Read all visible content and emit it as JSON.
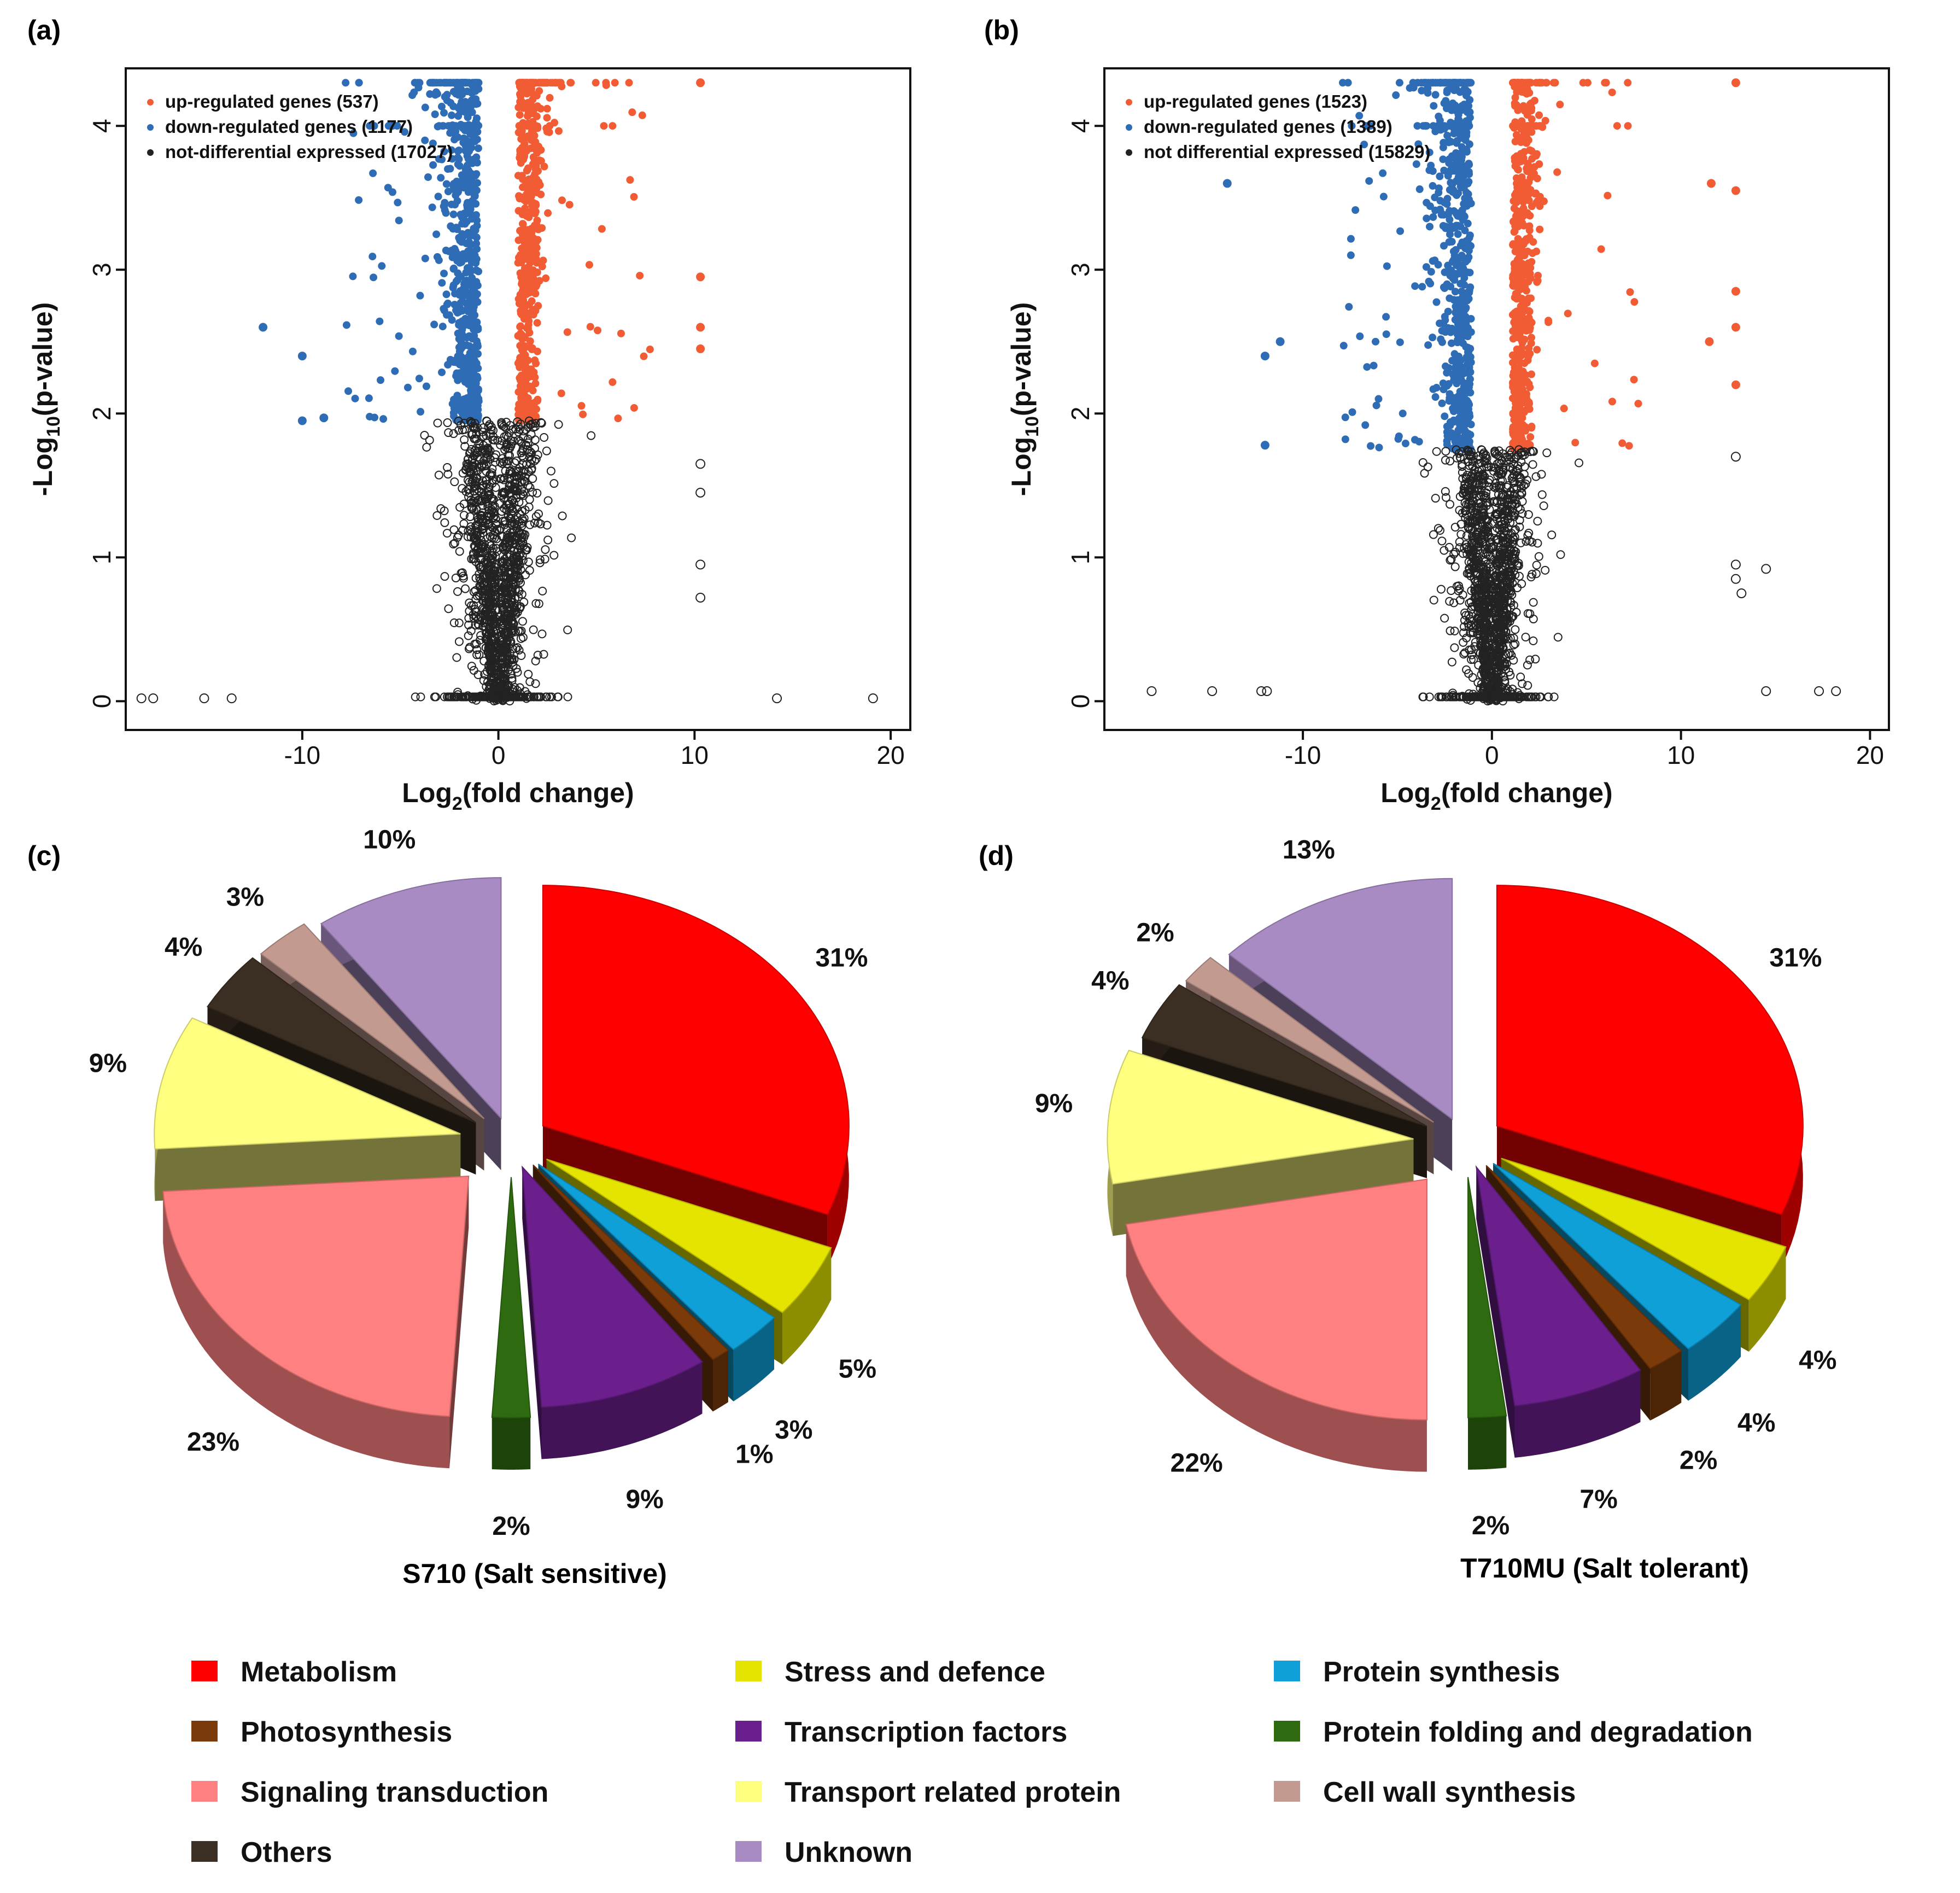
{
  "panel_labels": [
    "(a)",
    "(b)",
    "(c)",
    "(d)"
  ],
  "chart_data": [
    {
      "type": "scatter",
      "panel": "(a)",
      "xlabel_main": "Log",
      "xlabel_sub": "2",
      "xlabel_tail": "(fold change)",
      "ylabel_main": "-Log",
      "ylabel_sub": "10",
      "ylabel_tail": "(p-value)",
      "xticks": [
        "-10",
        "0",
        "10",
        "20"
      ],
      "yticks": [
        "0",
        "1",
        "2",
        "3",
        "4"
      ],
      "xlim": [
        -19,
        21
      ],
      "ylim": [
        -0.2,
        4.4
      ],
      "threshold_p": 1.95,
      "threshold_fc": 0.8,
      "legend": [
        {
          "text": "up-regulated genes (537)",
          "color": "#f25c35"
        },
        {
          "text": "down-regulated genes (1177)",
          "color": "#2e6cb5"
        },
        {
          "text": "not-differential expressed (17027)",
          "color": "#222222"
        }
      ],
      "colors": {
        "up": "#f25c35",
        "down": "#2e6cb5",
        "ns": "#222222"
      },
      "outliers": [
        [
          -18.2,
          0.02
        ],
        [
          -17.6,
          0.02
        ],
        [
          -15.0,
          0.02
        ],
        [
          -13.6,
          0.02
        ],
        [
          14.2,
          0.02
        ],
        [
          19.1,
          0.02
        ],
        [
          -12.0,
          2.6
        ],
        [
          10.3,
          4.3
        ],
        [
          10.3,
          2.95
        ],
        [
          10.3,
          2.6
        ],
        [
          10.3,
          2.45
        ],
        [
          -10.0,
          2.4
        ],
        [
          -10.0,
          1.95
        ],
        [
          -8.9,
          1.97
        ],
        [
          10.3,
          1.65
        ],
        [
          10.3,
          1.45
        ],
        [
          10.3,
          0.95
        ],
        [
          10.3,
          0.72
        ]
      ]
    },
    {
      "type": "scatter",
      "panel": "(b)",
      "xlabel_main": "Log",
      "xlabel_sub": "2",
      "xlabel_tail": "(fold change)",
      "ylabel_main": "-Log",
      "ylabel_sub": "10",
      "ylabel_tail": "(p-value)",
      "xticks": [
        "-10",
        "0",
        "10",
        "20"
      ],
      "yticks": [
        "0",
        "1",
        "2",
        "3",
        "4"
      ],
      "xlim": [
        -20.5,
        21
      ],
      "ylim": [
        -0.2,
        4.4
      ],
      "threshold_p": 1.75,
      "threshold_fc": 0.9,
      "legend": [
        {
          "text": "up-regulated genes (1523)",
          "color": "#f25c35"
        },
        {
          "text": "down-regulated genes (1389)",
          "color": "#2e6cb5"
        },
        {
          "text": "not differential expressed (15829)",
          "color": "#222222"
        }
      ],
      "colors": {
        "up": "#f25c35",
        "down": "#2e6cb5",
        "ns": "#222222"
      },
      "outliers": [
        [
          -18.0,
          0.07
        ],
        [
          -14.8,
          0.07
        ],
        [
          -12.2,
          0.07
        ],
        [
          -11.9,
          0.07
        ],
        [
          17.3,
          0.07
        ],
        [
          18.2,
          0.07
        ],
        [
          14.5,
          0.07
        ],
        [
          -14.0,
          3.6
        ],
        [
          -12.0,
          2.4
        ],
        [
          -12.0,
          1.78
        ],
        [
          -11.2,
          2.5
        ],
        [
          12.9,
          4.3
        ],
        [
          12.9,
          3.55
        ],
        [
          12.9,
          2.85
        ],
        [
          12.9,
          2.6
        ],
        [
          12.9,
          2.2
        ],
        [
          12.9,
          1.7
        ],
        [
          12.9,
          0.95
        ],
        [
          12.9,
          0.85
        ],
        [
          11.6,
          3.6
        ],
        [
          11.5,
          2.5
        ],
        [
          13.2,
          0.75
        ],
        [
          14.5,
          0.92
        ]
      ]
    },
    {
      "type": "pie",
      "panel": "(c)",
      "caption": "S710 (Salt sensitive)",
      "slices": [
        {
          "name": "Metabolism",
          "label": "31%",
          "value": 31
        },
        {
          "name": "Stress and defence",
          "label": "5%",
          "value": 5
        },
        {
          "name": "Protein synthesis",
          "label": "3%",
          "value": 3
        },
        {
          "name": "Photosynthesis",
          "label": "1%",
          "value": 1
        },
        {
          "name": "Transcription factors",
          "label": "9%",
          "value": 9
        },
        {
          "name": "Protein folding and degradation",
          "label": "2%",
          "value": 2
        },
        {
          "name": "Signaling transduction",
          "label": "23%",
          "value": 23
        },
        {
          "name": "Transport related protein",
          "label": "9%",
          "value": 9
        },
        {
          "name": "Others",
          "label": "4%",
          "value": 4
        },
        {
          "name": "Cell wall synthesis",
          "label": "3%",
          "value": 3
        },
        {
          "name": "Unknown",
          "label": "10%",
          "value": 10
        }
      ]
    },
    {
      "type": "pie",
      "panel": "(d)",
      "caption": "T710MU  (Salt tolerant)",
      "slices": [
        {
          "name": "Metabolism",
          "label": "31%",
          "value": 31
        },
        {
          "name": "Stress and defence",
          "label": "4%",
          "value": 4
        },
        {
          "name": "Protein synthesis",
          "label": "4%",
          "value": 4
        },
        {
          "name": "Photosynthesis",
          "label": "2%",
          "value": 2
        },
        {
          "name": "Transcription factors",
          "label": "7%",
          "value": 7
        },
        {
          "name": "Protein folding and degradation",
          "label": "2%",
          "value": 2
        },
        {
          "name": "Signaling transduction",
          "label": "22%",
          "value": 22
        },
        {
          "name": "Transport related protein",
          "label": "9%",
          "value": 9
        },
        {
          "name": "Others",
          "label": "4%",
          "value": 4
        },
        {
          "name": "Cell wall synthesis",
          "label": "2%",
          "value": 2
        },
        {
          "name": "Unknown",
          "label": "13%",
          "value": 13
        }
      ]
    }
  ],
  "legend_categories": [
    {
      "name": "Metabolism",
      "color": "#ff0000"
    },
    {
      "name": "Stress and defence",
      "color": "#e4e400"
    },
    {
      "name": "Protein synthesis",
      "color": "#0fa0d8"
    },
    {
      "name": "Photosynthesis",
      "color": "#7a3a0a"
    },
    {
      "name": "Transcription factors",
      "color": "#6a1f8c"
    },
    {
      "name": "Protein folding and degradation",
      "color": "#2e6b10"
    },
    {
      "name": "Signaling transduction",
      "color": "#ff8080"
    },
    {
      "name": "Transport related protein",
      "color": "#ffff80"
    },
    {
      "name": "Cell wall synthesis",
      "color": "#c29a90"
    },
    {
      "name": "Others",
      "color": "#3b2e22"
    },
    {
      "name": "Unknown",
      "color": "#a98bc4"
    }
  ]
}
